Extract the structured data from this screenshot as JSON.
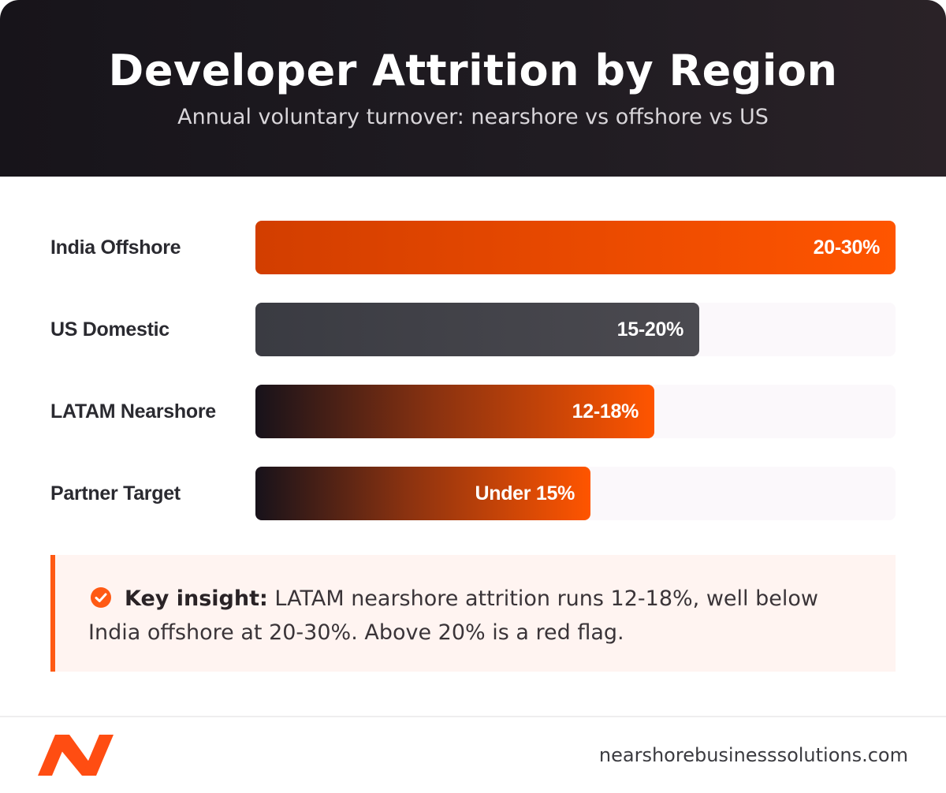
{
  "header": {
    "title": "Developer Attrition by Region",
    "subtitle": "Annual voluntary turnover: nearshore vs offshore vs US"
  },
  "chart_data": {
    "type": "bar",
    "orientation": "horizontal",
    "categories": [
      "India Offshore",
      "US Domestic",
      "LATAM Nearshore",
      "Partner Target"
    ],
    "value_labels": [
      "20-30%",
      "15-20%",
      "12-18%",
      "Under 15%"
    ],
    "values": [
      30,
      20.8,
      18.7,
      15.7
    ],
    "xlim": [
      0,
      30
    ],
    "grid": false,
    "bar_styles": [
      "orange",
      "gray",
      "dark-to-orange",
      "dark-to-orange"
    ],
    "colors": {
      "orange_start": "#d23e00",
      "orange_end": "#ff5500",
      "gray_start": "#3a3b42",
      "gray_end": "#4b4a50",
      "dark": "#17121a",
      "accent": "#ff5500"
    }
  },
  "insight": {
    "icon": "check-circle-icon",
    "label": "Key insight:",
    "text": " LATAM nearshore attrition runs 12-18%, well below India offshore at 20-30%. Above 20% is a red flag."
  },
  "footer": {
    "logo_icon": "brand-logo-icon",
    "site": "nearshorebusinesssolutions.com"
  }
}
